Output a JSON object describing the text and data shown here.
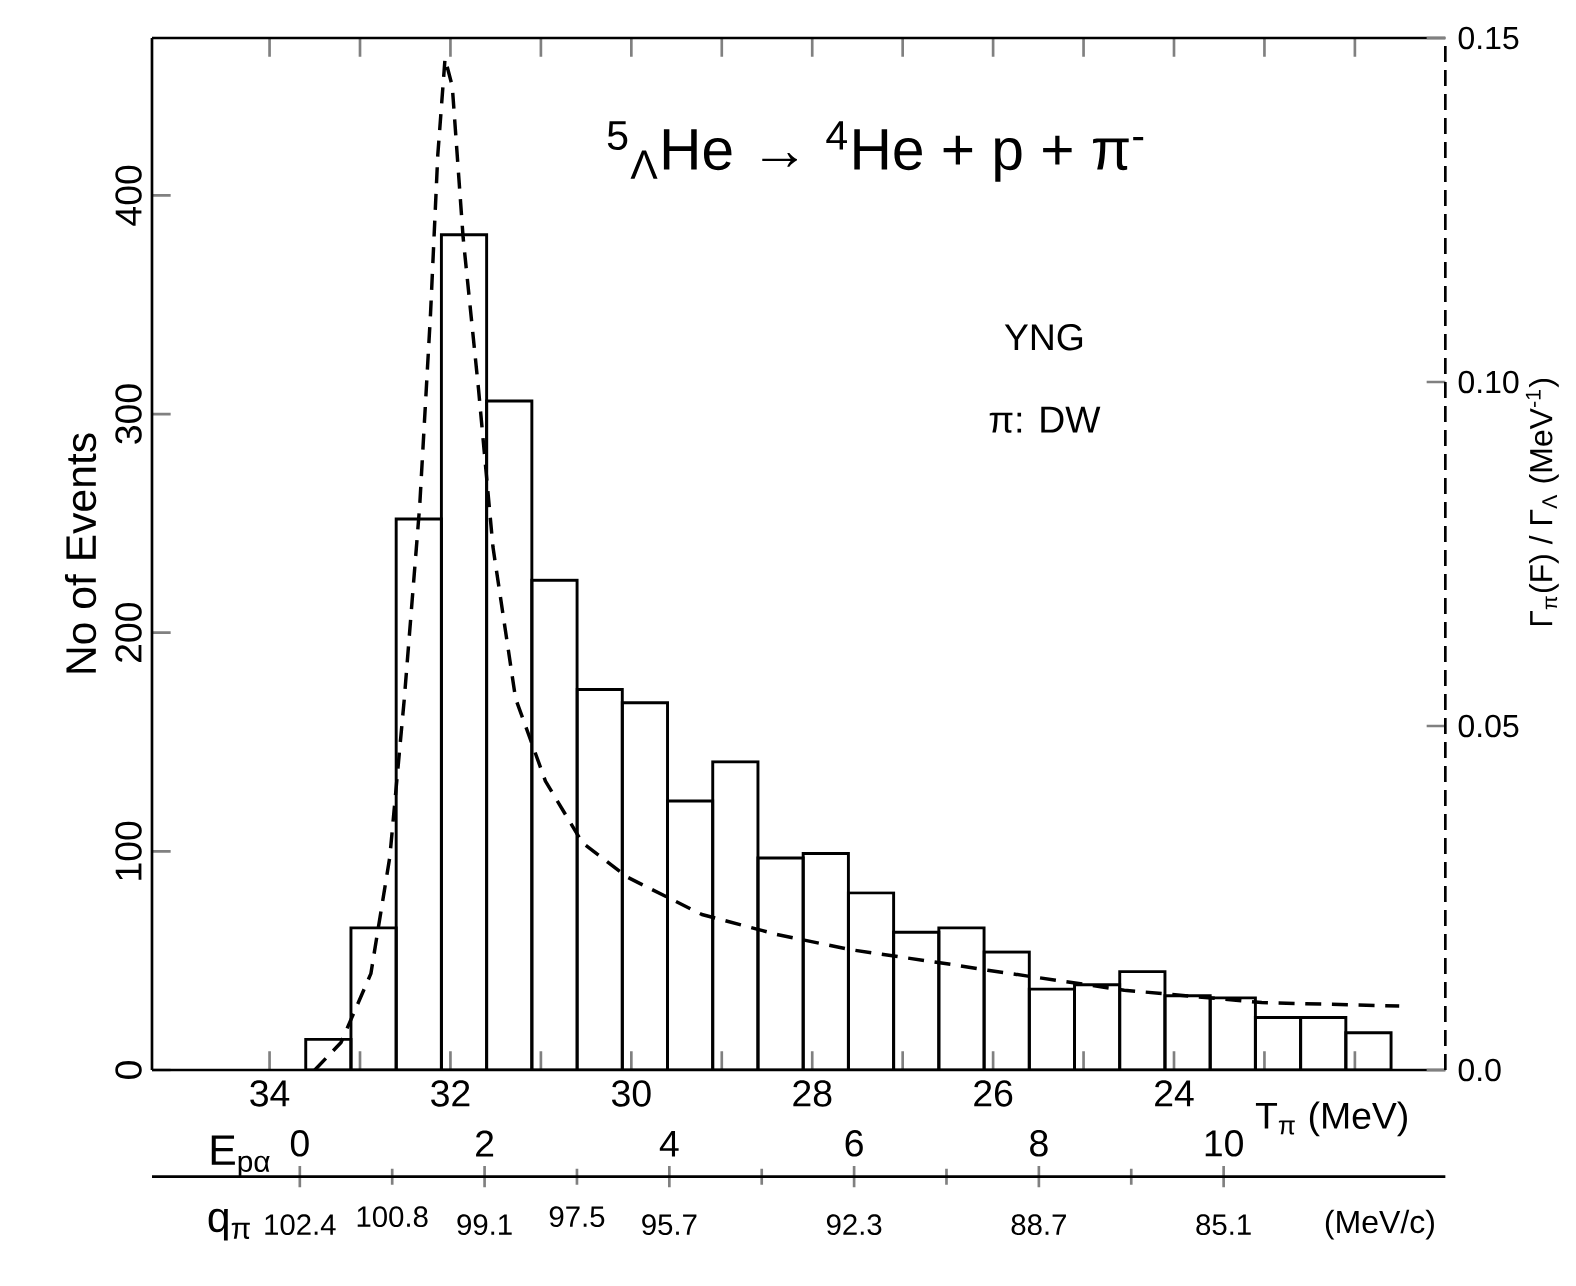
{
  "chart_data": {
    "type": "histogram",
    "annotations": [
      "$^{5}$$_{Λ}$He → $^{4}$He + p + π$^{-}$",
      "YNG",
      "π: DW",
      "q$_{π}$",
      "102.4",
      "100.8",
      "99.1",
      "97.5",
      "95.7",
      "92.3",
      "88.7",
      "85.1",
      "(MeV/c)"
    ],
    "xlabel": "T$_{π}$  (MeV)",
    "ylabel": "No of Events",
    "y2label": "Γ$_{π}$(F) / Γ$_{Λ}$          (MeV$^{-1}$)",
    "x2label": "E$_{pα}$",
    "series": [
      {
        "color": "#000000",
        "bins": [
          33.6,
          33.1,
          32.6,
          32.1,
          31.6,
          31.1,
          30.6,
          30.1,
          29.6,
          29.1,
          28.6,
          28.1,
          27.6,
          27.1,
          26.6,
          26.1,
          25.6,
          25.1,
          24.6,
          24.1,
          23.6,
          23.1,
          22.6,
          22.1,
          21.6
        ],
        "values": [
          14,
          65,
          252,
          382,
          306,
          224,
          174,
          168,
          123,
          141,
          97,
          99,
          81,
          63,
          65,
          54,
          37,
          39,
          45,
          34,
          33,
          24,
          24,
          17
        ]
      },
      {
        "type": "line",
        "axis": "y2",
        "color": "#000000",
        "line_style": "dashed",
        "x": [
          33.5,
          33.21,
          32.88,
          32.67,
          32.51,
          32.34,
          32.22,
          32.14,
          32.06,
          31.98,
          31.86,
          31.69,
          31.53,
          31.28,
          30.95,
          30.54,
          30.04,
          29.22,
          28.39,
          27.58,
          26.39,
          26.06,
          24.55,
          23.03,
          21.51
        ],
        "values": [
          0,
          0.004,
          0.014,
          0.031,
          0.054,
          0.082,
          0.11,
          0.133,
          0.147,
          0.143,
          0.121,
          0.099,
          0.076,
          0.054,
          0.042,
          0.033,
          0.028,
          0.0226,
          0.0197,
          0.0175,
          0.0152,
          0.0145,
          0.0116,
          0.0098,
          0.0093
        ]
      }
    ],
    "xlim": [
      35.3,
      21.0
    ],
    "xticks": [
      34,
      {
        "value": 33,
        "label": null
      },
      32,
      {
        "value": 31,
        "label": null
      },
      30,
      {
        "value": 29,
        "label": null
      },
      28,
      {
        "value": 27,
        "label": null
      },
      26,
      {
        "value": 25,
        "label": null
      },
      24,
      {
        "value": 23,
        "label": null
      },
      {
        "value": 22,
        "label": null
      }
    ],
    "ylim": [
      0,
      472
    ],
    "yticks": [
      0,
      100,
      200,
      300,
      400
    ],
    "y2lim": [
      0,
      0.15
    ],
    "y2ticks": [
      {
        "value": 0,
        "label": "0.0"
      },
      0.05,
      {
        "value": 0.1,
        "label": "0.10"
      },
      0.15
    ],
    "x2lim": [
      -1.6,
      12.4
    ],
    "x2ticks": [
      0,
      2,
      4,
      6,
      8,
      10
    ]
  }
}
